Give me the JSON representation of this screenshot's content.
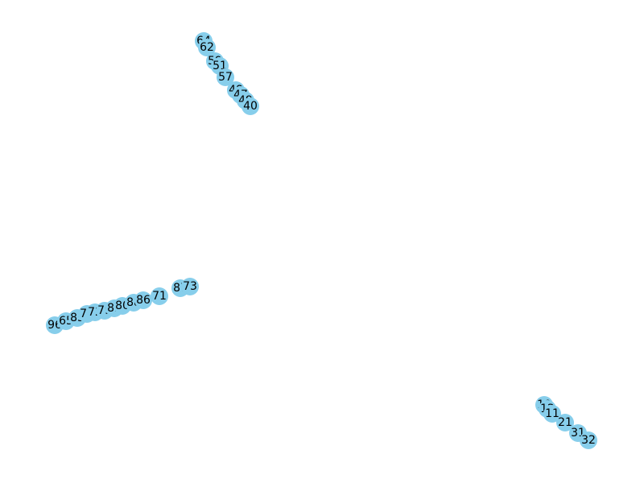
{
  "graph": {
    "node_color": "#87ceeb",
    "label_color": "#000000",
    "background": "#ffffff",
    "clusters": [
      {
        "nodes": [
          "64",
          "62",
          "59",
          "51",
          "57",
          "48",
          "47",
          "49",
          "40"
        ]
      },
      {
        "nodes": [
          "96",
          "65",
          "85",
          "75",
          "72",
          "79",
          "82",
          "80",
          "88",
          "86",
          "71",
          "87",
          "73"
        ]
      },
      {
        "nodes": [
          "10",
          "12",
          "11",
          "21",
          "31",
          "32"
        ]
      }
    ]
  }
}
